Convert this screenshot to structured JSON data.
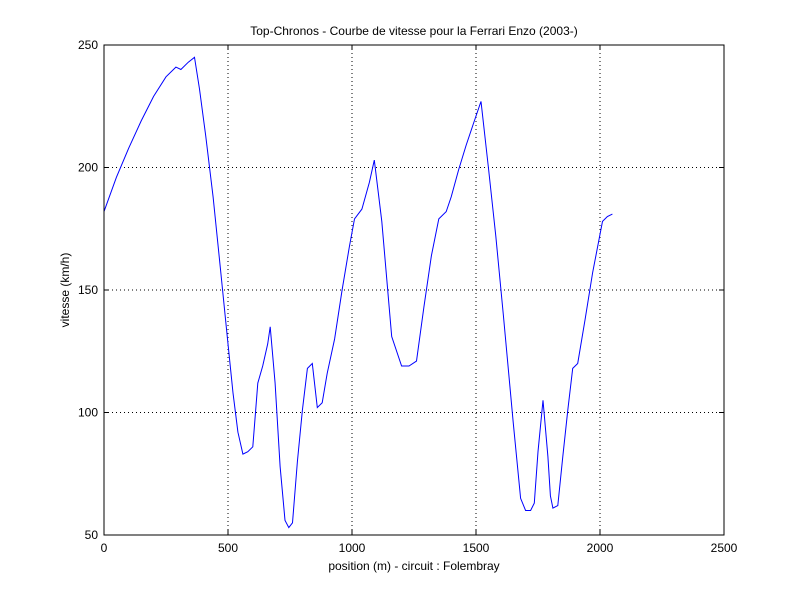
{
  "chart_data": {
    "type": "line",
    "title": "Top-Chronos - Courbe de vitesse pour la Ferrari Enzo (2003-)",
    "xlabel": "position (m) - circuit : Folembray",
    "ylabel": "vitesse (km/h)",
    "xlim": [
      0,
      2500
    ],
    "ylim": [
      50,
      250
    ],
    "xticks": [
      0,
      500,
      1000,
      1500,
      2000,
      2500
    ],
    "yticks": [
      50,
      100,
      150,
      200,
      250
    ],
    "grid": true,
    "series": [
      {
        "color": "#0000ff",
        "x": [
          0,
          50,
          100,
          150,
          200,
          250,
          290,
          310,
          340,
          365,
          385,
          410,
          440,
          470,
          500,
          520,
          540,
          560,
          580,
          600,
          620,
          640,
          660,
          670,
          690,
          710,
          730,
          745,
          760,
          780,
          800,
          820,
          840,
          860,
          880,
          900,
          930,
          960,
          990,
          1010,
          1040,
          1070,
          1090,
          1120,
          1160,
          1200,
          1230,
          1260,
          1290,
          1320,
          1350,
          1380,
          1400,
          1430,
          1460,
          1490,
          1520,
          1550,
          1580,
          1610,
          1650,
          1680,
          1700,
          1720,
          1735,
          1750,
          1770,
          1790,
          1800,
          1810,
          1830,
          1850,
          1870,
          1890,
          1910,
          1940,
          1970,
          2010,
          2030,
          2050
        ],
        "y": [
          182,
          196,
          208,
          219,
          229,
          237,
          241,
          240,
          243,
          245,
          232,
          213,
          188,
          158,
          128,
          108,
          92,
          83,
          84,
          86,
          112,
          119,
          128,
          135,
          112,
          78,
          56,
          53,
          55,
          80,
          101,
          118,
          120,
          102,
          104,
          116,
          130,
          150,
          168,
          179,
          183,
          194,
          203,
          178,
          131,
          119,
          119,
          121,
          143,
          164,
          179,
          182,
          188,
          199,
          209,
          218,
          227,
          200,
          172,
          140,
          96,
          65,
          60,
          60,
          63,
          84,
          105,
          82,
          66,
          61,
          62,
          82,
          101,
          118,
          120,
          138,
          157,
          178,
          180,
          181
        ]
      }
    ]
  }
}
